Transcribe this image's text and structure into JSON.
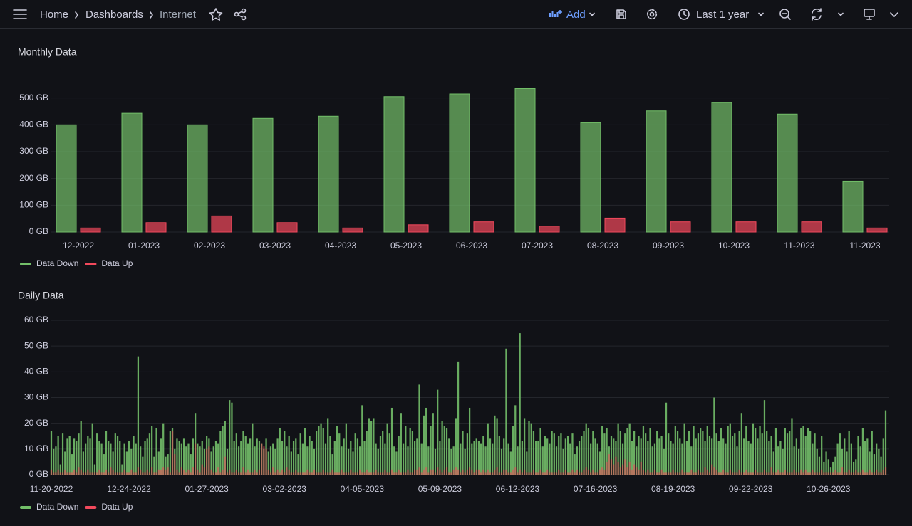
{
  "header": {
    "breadcrumbs": [
      "Home",
      "Dashboards",
      "Internet"
    ],
    "add": "Add",
    "time_range": "Last 1 year"
  },
  "chart_data": [
    {
      "type": "bar",
      "title": "Monthly Data",
      "categories": [
        "12-2022",
        "01-2023",
        "02-2023",
        "03-2023",
        "04-2023",
        "05-2023",
        "06-2023",
        "07-2023",
        "08-2023",
        "09-2023",
        "10-2023",
        "11-2023",
        "11-2023"
      ],
      "series": [
        {
          "name": "Data Down",
          "color": "#73bf69",
          "values": [
            400,
            443,
            400,
            424,
            432,
            505,
            515,
            535,
            408,
            452,
            483,
            440,
            190
          ]
        },
        {
          "name": "Data Up",
          "color": "#f2495c",
          "values": [
            15,
            35,
            60,
            35,
            15,
            27,
            38,
            22,
            52,
            38,
            38,
            38,
            15
          ]
        }
      ],
      "ylim": [
        0,
        600
      ],
      "yticks": [
        {
          "value": 0,
          "label": "0 GB"
        },
        {
          "value": 100,
          "label": "100 GB"
        },
        {
          "value": 200,
          "label": "200 GB"
        },
        {
          "value": 300,
          "label": "300 GB"
        },
        {
          "value": 400,
          "label": "400 GB"
        },
        {
          "value": 500,
          "label": "500 GB"
        }
      ],
      "grid": true,
      "legend": "bottom-left"
    },
    {
      "type": "bar",
      "title": "Daily Data",
      "series": [
        {
          "name": "Data Down",
          "color": "#73bf69",
          "values": [
            17,
            10,
            11,
            15,
            4,
            16,
            9,
            14,
            15,
            8,
            14,
            13,
            16,
            21,
            9,
            12,
            15,
            14,
            20,
            4,
            16,
            13,
            12,
            8,
            17,
            13,
            12,
            9,
            16,
            15,
            13,
            4,
            12,
            9,
            13,
            10,
            15,
            12,
            46,
            11,
            7,
            13,
            14,
            16,
            19,
            7,
            18,
            9,
            14,
            20,
            7,
            8,
            17,
            18,
            10,
            14,
            13,
            12,
            14,
            11,
            12,
            8,
            14,
            24,
            12,
            11,
            13,
            10,
            15,
            14,
            9,
            11,
            13,
            12,
            17,
            19,
            21,
            10,
            29,
            28,
            13,
            16,
            11,
            13,
            17,
            15,
            12,
            14,
            20,
            11,
            14,
            13,
            12,
            10,
            14,
            9,
            11,
            12,
            10,
            14,
            18,
            13,
            17,
            11,
            15,
            9,
            13,
            14,
            8,
            16,
            12,
            18,
            11,
            15,
            13,
            10,
            17,
            19,
            20,
            18,
            12,
            22,
            15,
            8,
            13,
            19,
            16,
            11,
            14,
            20,
            10,
            13,
            9,
            16,
            14,
            11,
            27,
            13,
            17,
            22,
            21,
            22,
            12,
            10,
            15,
            17,
            12,
            20,
            16,
            26,
            11,
            9,
            15,
            24,
            12,
            19,
            11,
            18,
            17,
            13,
            14,
            35,
            12,
            23,
            26,
            11,
            19,
            24,
            10,
            33,
            13,
            21,
            19,
            18,
            14,
            10,
            11,
            22,
            44,
            12,
            17,
            10,
            16,
            26,
            12,
            13,
            14,
            13,
            12,
            15,
            11,
            20,
            14,
            12,
            23,
            22,
            15,
            10,
            14,
            49,
            12,
            9,
            19,
            27,
            11,
            55,
            13,
            22,
            9,
            21,
            20,
            17,
            13,
            13,
            18,
            11,
            15,
            14,
            12,
            17,
            16,
            11,
            15,
            16,
            10,
            14,
            15,
            12,
            16,
            8,
            11,
            13,
            15,
            17,
            20,
            18,
            12,
            17,
            14,
            12,
            9,
            19,
            16,
            18,
            11,
            15,
            14,
            13,
            20,
            17,
            12,
            16,
            18,
            20,
            13,
            17,
            11,
            15,
            14,
            19,
            16,
            13,
            18,
            11,
            12,
            17,
            14,
            15,
            10,
            28,
            16,
            13,
            12,
            19,
            17,
            14,
            12,
            20,
            13,
            17,
            11,
            19,
            14,
            16,
            18,
            17,
            13,
            19,
            15,
            14,
            30,
            16,
            13,
            18,
            14,
            12,
            19,
            20,
            15,
            16,
            11,
            17,
            24,
            14,
            19,
            13,
            12,
            20,
            18,
            14,
            19,
            16,
            29,
            17,
            13,
            15,
            9,
            18,
            11,
            13,
            10,
            18,
            16,
            17,
            22,
            11,
            14,
            10,
            18,
            19,
            15,
            18,
            17,
            12,
            16,
            10,
            7,
            15,
            5,
            9,
            6,
            3,
            5,
            7,
            12,
            16,
            10,
            14,
            9,
            17,
            12,
            5,
            6,
            15,
            11,
            18,
            13,
            14,
            9,
            17,
            8,
            12,
            10,
            7,
            14,
            25
          ]
        },
        {
          "name": "Data Up",
          "color": "#f2495c",
          "values": [
            2,
            1,
            1,
            2,
            1,
            1,
            2,
            1,
            1,
            1,
            2,
            1,
            3,
            2,
            1,
            1,
            2,
            1,
            1,
            1,
            1,
            2,
            1,
            1,
            2,
            1,
            3,
            2,
            1,
            1,
            1,
            1,
            2,
            1,
            1,
            2,
            1,
            1,
            3,
            2,
            1,
            1,
            2,
            1,
            3,
            1,
            1,
            2,
            2,
            3,
            2,
            3,
            1,
            17,
            8,
            2,
            1,
            3,
            2,
            1,
            2,
            1,
            3,
            12,
            2,
            1,
            4,
            3,
            10,
            11,
            2,
            1,
            1,
            3,
            1,
            2,
            7,
            1,
            2,
            1,
            1,
            2,
            1,
            1,
            3,
            1,
            2,
            1,
            1,
            2,
            1,
            2,
            12,
            11,
            10,
            2,
            1,
            3,
            1,
            2,
            1,
            2,
            1,
            3,
            2,
            1,
            1,
            2,
            1,
            1,
            1,
            1,
            2,
            1,
            1,
            2,
            1,
            1,
            1,
            2,
            1,
            1,
            1,
            2,
            1,
            1,
            1,
            2,
            1,
            1,
            1,
            2,
            1,
            1,
            1,
            2,
            1,
            1,
            2,
            1,
            1,
            1,
            2,
            1,
            1,
            1,
            2,
            1,
            1,
            2,
            1,
            1,
            2,
            1,
            1,
            1,
            2,
            1,
            1,
            2,
            2,
            3,
            1,
            2,
            3,
            1,
            2,
            2,
            1,
            3,
            2,
            1,
            2,
            3,
            1,
            1,
            2,
            3,
            2,
            1,
            2,
            1,
            2,
            3,
            2,
            1,
            2,
            2,
            1,
            2,
            1,
            2,
            1,
            1,
            2,
            3,
            1,
            1,
            2,
            2,
            1,
            1,
            2,
            3,
            1,
            2,
            1,
            2,
            1,
            1,
            1,
            2,
            1,
            1,
            2,
            1,
            1,
            2,
            1,
            1,
            1,
            1,
            2,
            1,
            1,
            2,
            1,
            1,
            2,
            1,
            2,
            1,
            1,
            2,
            3,
            2,
            1,
            2,
            1,
            1,
            2,
            3,
            2,
            5,
            8,
            6,
            4,
            7,
            5,
            3,
            4,
            6,
            3,
            5,
            2,
            4,
            3,
            2,
            5,
            2,
            1,
            2,
            1,
            1,
            2,
            1,
            1,
            2,
            1,
            1,
            1,
            1,
            2,
            1,
            1,
            1,
            2,
            1,
            1,
            1,
            2,
            1,
            1,
            2,
            1,
            1,
            3,
            2,
            1,
            4,
            3,
            2,
            1,
            1,
            2,
            1,
            1,
            2,
            1,
            1,
            1,
            2,
            1,
            1,
            2,
            1,
            1,
            1,
            2,
            1,
            1,
            1,
            2,
            1,
            1,
            3,
            1,
            1,
            2,
            1,
            1,
            2,
            1,
            1,
            1,
            2,
            1,
            1,
            2,
            1,
            2,
            1,
            1,
            2,
            1,
            1,
            1,
            2,
            1,
            1,
            1,
            1,
            1,
            2,
            1,
            1,
            3,
            1,
            1,
            2,
            1,
            1,
            2,
            1,
            1,
            2,
            1,
            1,
            2,
            1,
            1,
            2,
            1,
            1,
            2,
            3
          ]
        }
      ],
      "xlim": [
        0,
        365
      ],
      "xticks": [
        {
          "value": 0,
          "label": "11-20-2022"
        },
        {
          "value": 34,
          "label": "12-24-2022"
        },
        {
          "value": 68,
          "label": "01-27-2023"
        },
        {
          "value": 102,
          "label": "03-02-2023"
        },
        {
          "value": 136,
          "label": "04-05-2023"
        },
        {
          "value": 170,
          "label": "05-09-2023"
        },
        {
          "value": 204,
          "label": "06-12-2023"
        },
        {
          "value": 238,
          "label": "07-16-2023"
        },
        {
          "value": 272,
          "label": "08-19-2023"
        },
        {
          "value": 306,
          "label": "09-22-2023"
        },
        {
          "value": 340,
          "label": "10-26-2023"
        }
      ],
      "ylim": [
        0,
        60
      ],
      "yticks": [
        {
          "value": 0,
          "label": "0 GB"
        },
        {
          "value": 10,
          "label": "10 GB"
        },
        {
          "value": 20,
          "label": "20 GB"
        },
        {
          "value": 30,
          "label": "30 GB"
        },
        {
          "value": 40,
          "label": "40 GB"
        },
        {
          "value": 50,
          "label": "50 GB"
        },
        {
          "value": 60,
          "label": "60 GB"
        }
      ],
      "grid": true,
      "legend": "bottom-left"
    }
  ]
}
